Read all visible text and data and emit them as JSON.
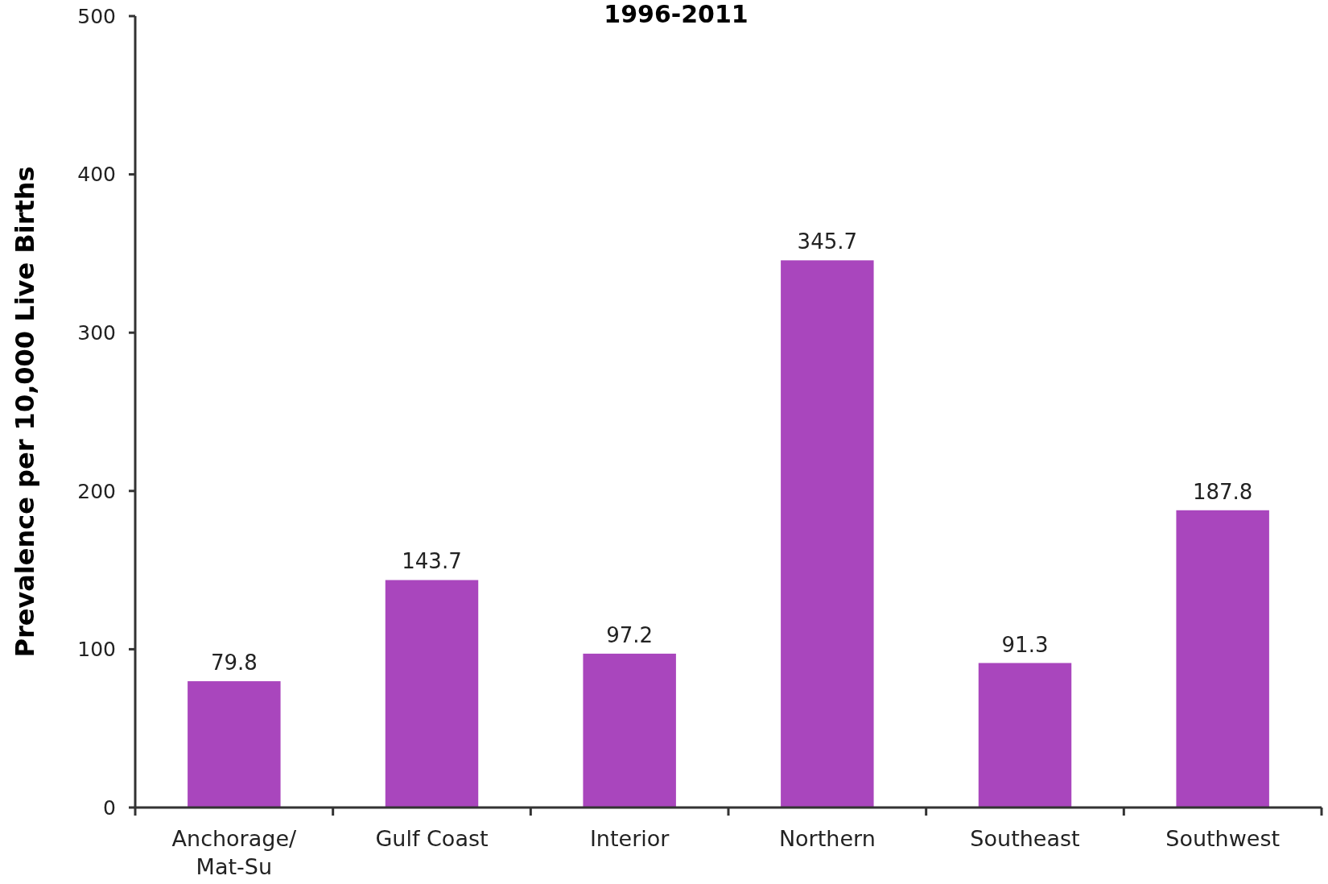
{
  "chart_data": {
    "type": "bar",
    "title": "1996-2011",
    "ylabel": "Prevalence per 10,000 Live Births",
    "categories": [
      "Anchorage/ Mat-Su",
      "Gulf Coast",
      "Interior",
      "Northern",
      "Southeast",
      "Southwest"
    ],
    "values": [
      79.8,
      143.7,
      97.2,
      345.7,
      91.3,
      187.8
    ],
    "color": "#a946bd",
    "ylim": [
      0,
      500
    ],
    "yticks": [
      0,
      100,
      200,
      300,
      400,
      500
    ],
    "grid": false,
    "data_labels": true
  }
}
